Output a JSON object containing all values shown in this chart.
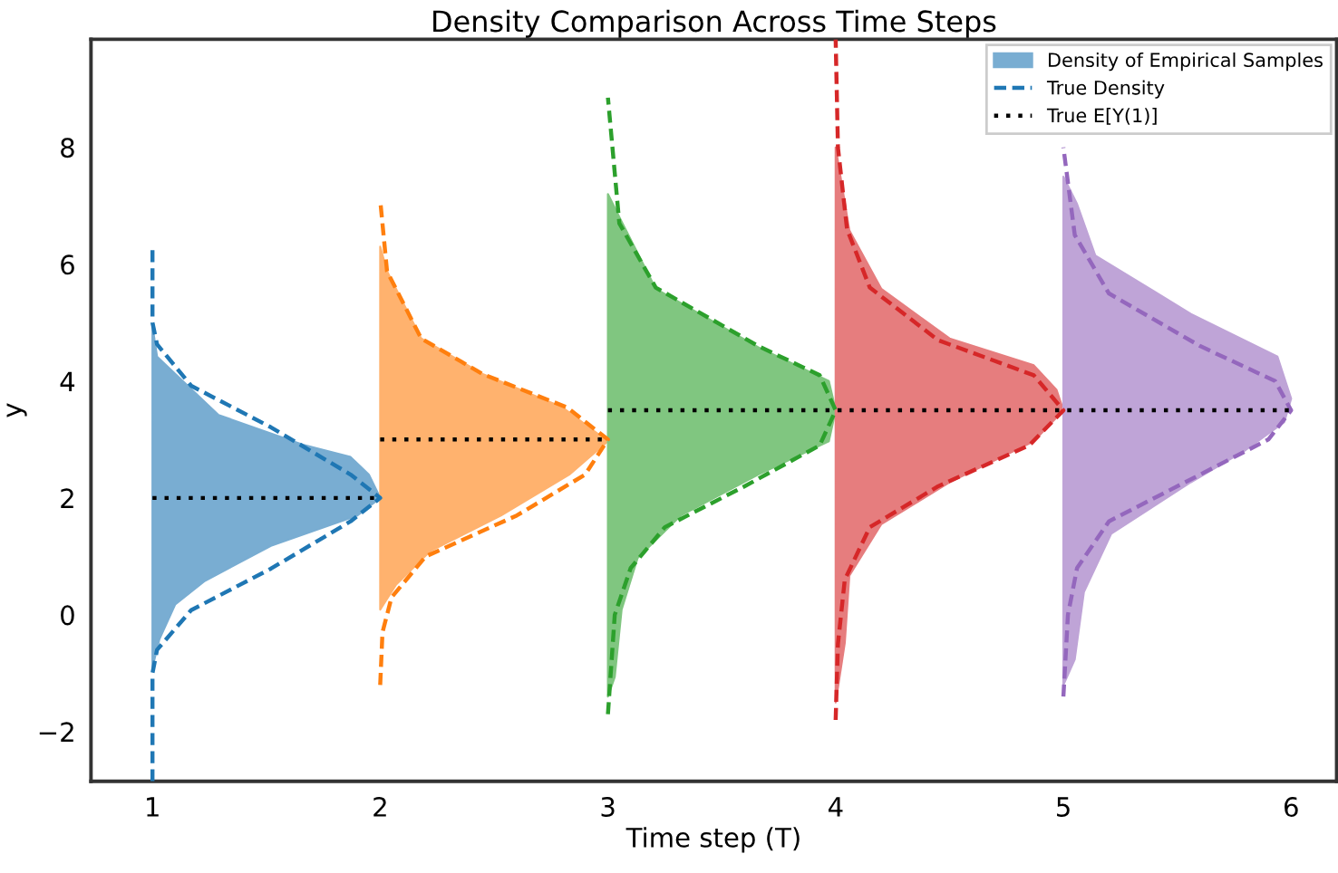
{
  "chart_data": {
    "type": "area",
    "title": "Density Comparison Across Time Steps",
    "xlabel": "Time step (T)",
    "ylabel": "y",
    "xlim": [
      0.73,
      6.2
    ],
    "ylim": [
      -2.85,
      9.85
    ],
    "xticks": [
      1,
      2,
      3,
      4,
      5,
      6
    ],
    "yticks": [
      -2,
      0,
      2,
      4,
      6,
      8
    ],
    "grid": false,
    "legend": "top right",
    "series": [
      {
        "name": "Density of Empirical Samples",
        "color": "#79add2",
        "x": [
          1.0,
          1.03,
          1.1,
          1.23,
          1.52,
          1.9,
          2.0,
          1.95,
          1.87,
          1.66,
          1.29,
          1.02,
          1.0
        ],
        "values": [
          -0.9,
          -0.42,
          0.18,
          0.58,
          1.18,
          1.7,
          2.0,
          2.4,
          2.7,
          2.91,
          3.42,
          4.42,
          4.94
        ]
      },
      {
        "color": "#ffb26e",
        "x": [
          2.0,
          2.07,
          2.22,
          2.53,
          2.83,
          3.0,
          2.8,
          2.45,
          2.18,
          2.03,
          2.0
        ],
        "values": [
          0.09,
          0.52,
          1.09,
          1.7,
          2.4,
          2.97,
          3.55,
          4.12,
          4.73,
          5.88,
          6.3
        ]
      },
      {
        "color": "#80c680",
        "x": [
          3.0,
          3.03,
          3.06,
          3.13,
          3.32,
          3.66,
          3.97,
          4.0,
          3.97,
          3.66,
          3.21,
          3.06,
          3.0
        ],
        "values": [
          -1.4,
          -1.06,
          0.09,
          0.97,
          1.7,
          2.4,
          2.97,
          3.5,
          4.0,
          4.58,
          5.58,
          6.73,
          7.2
        ]
      },
      {
        "color": "#e67d7e",
        "x": [
          4.0,
          4.04,
          4.06,
          4.2,
          4.5,
          4.87,
          5.0,
          4.97,
          4.87,
          4.5,
          4.2,
          4.06,
          4.0
        ],
        "values": [
          -1.5,
          -0.48,
          0.67,
          1.55,
          2.27,
          2.97,
          3.5,
          3.85,
          4.27,
          4.73,
          5.58,
          6.58,
          8.0
        ]
      },
      {
        "color": "#bfa4d7",
        "x": [
          5.0,
          5.05,
          5.09,
          5.21,
          5.56,
          5.8,
          5.97,
          6.0,
          5.94,
          5.56,
          5.14,
          5.06,
          5.0
        ],
        "values": [
          -1.2,
          -0.76,
          0.39,
          1.39,
          2.27,
          2.82,
          3.3,
          3.7,
          4.42,
          5.15,
          6.15,
          7.03,
          7.5
        ]
      },
      {
        "type": "line",
        "line_style": "dashed",
        "name": "True Density",
        "color": "#1f77b4",
        "x": [
          1.0,
          1.0,
          1.02,
          1.17,
          1.52,
          1.87,
          2.0,
          1.87,
          1.52,
          1.17,
          1.02,
          1.0,
          1.0
        ],
        "values": [
          -2.85,
          -1.0,
          -0.6,
          0.08,
          0.79,
          1.6,
          2.0,
          2.4,
          3.21,
          3.92,
          4.63,
          5.0,
          6.3
        ]
      },
      {
        "type": "line",
        "line_style": "dashed",
        "color": "#ff7f0e",
        "x": [
          2.0,
          2.01,
          2.05,
          2.2,
          2.6,
          2.9,
          3.0,
          2.82,
          2.45,
          2.18,
          2.03,
          2.0
        ],
        "values": [
          -1.2,
          -0.3,
          0.3,
          1.0,
          1.7,
          2.4,
          3.0,
          3.55,
          4.12,
          4.73,
          5.88,
          7.1
        ]
      },
      {
        "type": "line",
        "line_style": "dashed",
        "color": "#2ca02c",
        "x": [
          3.0,
          3.03,
          3.1,
          3.25,
          3.6,
          3.93,
          4.0,
          3.93,
          3.66,
          3.21,
          3.05,
          3.0
        ],
        "values": [
          -1.7,
          0.0,
          0.8,
          1.5,
          2.2,
          2.9,
          3.5,
          4.1,
          4.6,
          5.6,
          6.7,
          8.85
        ]
      },
      {
        "type": "line",
        "line_style": "dashed",
        "color": "#d62728",
        "x": [
          4.0,
          4.01,
          4.04,
          4.15,
          4.45,
          4.85,
          5.0,
          4.87,
          4.45,
          4.15,
          4.05,
          4.01,
          4.0
        ],
        "values": [
          -1.8,
          -0.5,
          0.6,
          1.5,
          2.2,
          2.9,
          3.5,
          4.1,
          4.7,
          5.6,
          6.6,
          8.0,
          9.85
        ]
      },
      {
        "type": "line",
        "line_style": "dashed",
        "color": "#9467bd",
        "x": [
          5.0,
          5.02,
          5.06,
          5.2,
          5.6,
          5.9,
          6.0,
          5.93,
          5.6,
          5.2,
          5.05,
          5.0
        ],
        "values": [
          -1.4,
          0.0,
          0.8,
          1.6,
          2.4,
          3.0,
          3.5,
          4.0,
          4.6,
          5.5,
          6.5,
          8.0
        ]
      },
      {
        "type": "line",
        "line_style": "dotted",
        "name": "True E[Y(1)]",
        "color": "#000000",
        "x": [
          1,
          2
        ],
        "values": [
          2,
          2
        ]
      },
      {
        "type": "line",
        "line_style": "dotted",
        "color": "#000000",
        "x": [
          2,
          3
        ],
        "values": [
          3,
          3
        ]
      },
      {
        "type": "line",
        "line_style": "dotted",
        "color": "#000000",
        "x": [
          3,
          4,
          5,
          6
        ],
        "values": [
          3.5,
          3.5,
          3.5,
          3.5
        ]
      }
    ]
  }
}
